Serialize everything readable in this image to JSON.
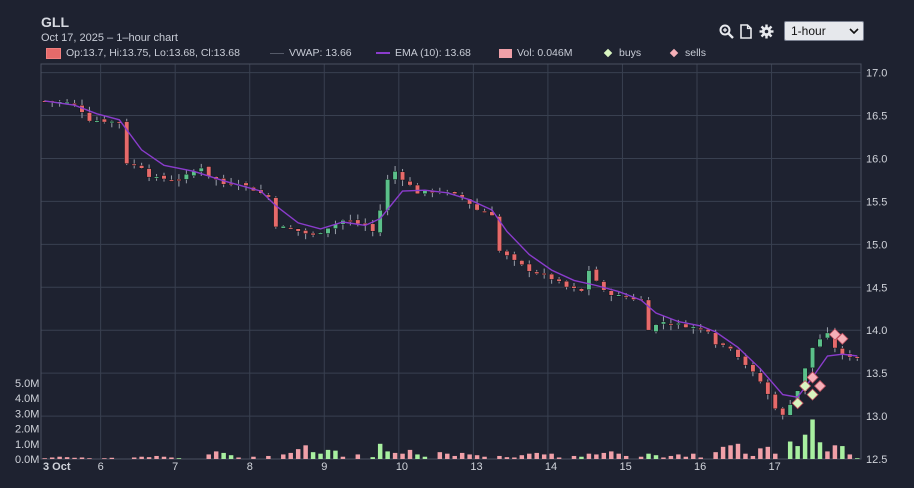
{
  "header": {
    "symbol": "GLL",
    "subtitle": "Oct 17, 2025 – 1–hour chart",
    "interval": "1-hour"
  },
  "toolbar": {
    "icons": [
      "zoom-icon",
      "document-icon",
      "gear-icon"
    ]
  },
  "legend": {
    "ohlc": "Op:13.7, Hi:13.75, Lo:13.68, Cl:13.68",
    "vwap": "VWAP: 13.66",
    "ema": "EMA (10): 13.68",
    "vol": "Vol: 0.046M",
    "buys": "buys",
    "sells": "sells"
  },
  "colors": {
    "background": "#1e2230",
    "grid": "#394050",
    "up": "#5bc08a",
    "down": "#e66a6a",
    "volume_up": "#a8f0a0",
    "volume_down": "#f0a0a8",
    "ema": "#8a3ccc",
    "buy_marker": "#d8f5c0",
    "sell_marker": "#f5b0b8"
  },
  "chart_data": {
    "type": "candlestick",
    "x_tick_labels": [
      "3 Oct",
      "6",
      "7",
      "8",
      "9",
      "10",
      "13",
      "14",
      "15",
      "16",
      "17"
    ],
    "price_axis": {
      "ticks": [
        17.0,
        16.5,
        16.0,
        15.5,
        15.0,
        14.5,
        14.0,
        13.5,
        13.0,
        12.5
      ],
      "range": [
        12.5,
        17.1
      ]
    },
    "volume_axis": {
      "ticks": [
        "5.0M",
        "4.0M",
        "3.0M",
        "2.0M",
        "1.0M",
        "0.0M"
      ],
      "range": [
        0,
        5.0
      ]
    },
    "close_path": [
      [
        0,
        16.67
      ],
      [
        3,
        16.65
      ],
      [
        4,
        16.63
      ],
      [
        5,
        16.55
      ],
      [
        6,
        16.45
      ],
      [
        9,
        16.43
      ],
      [
        10,
        16.42
      ],
      [
        11,
        15.95
      ],
      [
        13,
        15.9
      ],
      [
        14,
        15.8
      ],
      [
        15,
        15.77
      ],
      [
        18,
        15.75
      ],
      [
        21,
        15.9
      ],
      [
        22,
        15.8
      ],
      [
        24,
        15.7
      ],
      [
        26,
        15.72
      ],
      [
        30,
        15.55
      ],
      [
        31,
        15.22
      ],
      [
        33,
        15.18
      ],
      [
        36,
        15.1
      ],
      [
        38,
        15.2
      ],
      [
        40,
        15.28
      ],
      [
        43,
        15.22
      ],
      [
        44,
        15.15
      ],
      [
        45,
        15.4
      ],
      [
        46,
        15.75
      ],
      [
        47,
        15.85
      ],
      [
        50,
        15.6
      ],
      [
        53,
        15.62
      ],
      [
        56,
        15.55
      ],
      [
        58,
        15.4
      ],
      [
        60,
        15.35
      ],
      [
        61,
        14.92
      ],
      [
        63,
        14.8
      ],
      [
        65,
        14.7
      ],
      [
        68,
        14.6
      ],
      [
        70,
        14.5
      ],
      [
        72,
        14.45
      ],
      [
        73,
        14.7
      ],
      [
        75,
        14.45
      ],
      [
        77,
        14.4
      ],
      [
        80,
        14.35
      ],
      [
        81,
        14.02
      ],
      [
        83,
        14.1
      ],
      [
        86,
        14.05
      ],
      [
        89,
        14.0
      ],
      [
        90,
        13.85
      ],
      [
        92,
        13.8
      ],
      [
        94,
        13.6
      ],
      [
        96,
        13.4
      ],
      [
        98,
        13.1
      ],
      [
        99,
        13.0
      ],
      [
        100,
        13.15
      ],
      [
        101,
        13.3
      ],
      [
        102,
        13.55
      ],
      [
        103,
        13.8
      ],
      [
        104,
        13.9
      ],
      [
        105,
        13.95
      ],
      [
        106,
        13.8
      ],
      [
        107,
        13.7
      ],
      [
        108,
        13.7
      ],
      [
        109,
        13.68
      ]
    ],
    "ema_path": [
      [
        0,
        16.67
      ],
      [
        4,
        16.62
      ],
      [
        7,
        16.52
      ],
      [
        10,
        16.45
      ],
      [
        13,
        16.1
      ],
      [
        16,
        15.92
      ],
      [
        20,
        15.85
      ],
      [
        24,
        15.74
      ],
      [
        29,
        15.62
      ],
      [
        31,
        15.45
      ],
      [
        34,
        15.25
      ],
      [
        37,
        15.18
      ],
      [
        40,
        15.26
      ],
      [
        43,
        15.22
      ],
      [
        45,
        15.3
      ],
      [
        48,
        15.62
      ],
      [
        51,
        15.63
      ],
      [
        54,
        15.6
      ],
      [
        57,
        15.52
      ],
      [
        60,
        15.4
      ],
      [
        62,
        15.15
      ],
      [
        65,
        14.88
      ],
      [
        68,
        14.7
      ],
      [
        71,
        14.58
      ],
      [
        74,
        14.52
      ],
      [
        77,
        14.45
      ],
      [
        80,
        14.35
      ],
      [
        82,
        14.2
      ],
      [
        85,
        14.1
      ],
      [
        88,
        14.05
      ],
      [
        90,
        13.98
      ],
      [
        93,
        13.8
      ],
      [
        96,
        13.55
      ],
      [
        99,
        13.25
      ],
      [
        101,
        13.22
      ],
      [
        103,
        13.45
      ],
      [
        105,
        13.7
      ],
      [
        107,
        13.72
      ],
      [
        109,
        13.7
      ]
    ],
    "vwap": 13.66,
    "volume_bars": [
      [
        0,
        0.05
      ],
      [
        1,
        0.1
      ],
      [
        2,
        0.15
      ],
      [
        3,
        0.12
      ],
      [
        4,
        0.08
      ],
      [
        5,
        0.1
      ],
      [
        6,
        0.05
      ],
      [
        8,
        0.05
      ],
      [
        9,
        0.08
      ],
      [
        12,
        0.1
      ],
      [
        13,
        0.15
      ],
      [
        14,
        0.12
      ],
      [
        15,
        0.2
      ],
      [
        16,
        0.15
      ],
      [
        17,
        0.1
      ],
      [
        18,
        0.05
      ],
      [
        22,
        0.3
      ],
      [
        23,
        0.5
      ],
      [
        24,
        0.4
      ],
      [
        25,
        0.25
      ],
      [
        26,
        0.1
      ],
      [
        28,
        0.15
      ],
      [
        30,
        0.2
      ],
      [
        32,
        0.3
      ],
      [
        33,
        0.4
      ],
      [
        34,
        0.65
      ],
      [
        35,
        0.9
      ],
      [
        36,
        0.45
      ],
      [
        37,
        0.35
      ],
      [
        38,
        0.6
      ],
      [
        39,
        0.55
      ],
      [
        40,
        0.15
      ],
      [
        42,
        0.3
      ],
      [
        44,
        0.12
      ],
      [
        45,
        1.0
      ],
      [
        46,
        0.5
      ],
      [
        47,
        0.4
      ],
      [
        48,
        0.35
      ],
      [
        49,
        0.6
      ],
      [
        50,
        0.3
      ],
      [
        51,
        0.15
      ],
      [
        53,
        0.45
      ],
      [
        54,
        0.35
      ],
      [
        55,
        0.2
      ],
      [
        56,
        0.4
      ],
      [
        57,
        0.3
      ],
      [
        58,
        0.25
      ],
      [
        59,
        0.15
      ],
      [
        61,
        0.2
      ],
      [
        62,
        0.12
      ],
      [
        63,
        0.1
      ],
      [
        64,
        0.25
      ],
      [
        65,
        0.35
      ],
      [
        66,
        0.4
      ],
      [
        67,
        0.3
      ],
      [
        68,
        0.35
      ],
      [
        69,
        0.1
      ],
      [
        71,
        0.2
      ],
      [
        72,
        0.15
      ],
      [
        73,
        0.35
      ],
      [
        74,
        0.3
      ],
      [
        75,
        0.4
      ],
      [
        76,
        0.5
      ],
      [
        77,
        0.35
      ],
      [
        78,
        0.2
      ],
      [
        80,
        0.15
      ],
      [
        81,
        0.35
      ],
      [
        82,
        0.25
      ],
      [
        83,
        0.1
      ],
      [
        84,
        0.2
      ],
      [
        85,
        0.3
      ],
      [
        86,
        0.15
      ],
      [
        87,
        0.35
      ],
      [
        88,
        0.1
      ],
      [
        90,
        0.45
      ],
      [
        91,
        0.8
      ],
      [
        92,
        0.9
      ],
      [
        93,
        1.0
      ],
      [
        94,
        0.35
      ],
      [
        95,
        0.2
      ],
      [
        96,
        0.7
      ],
      [
        97,
        0.8
      ],
      [
        98,
        0.35
      ],
      [
        100,
        1.15
      ],
      [
        101,
        0.85
      ],
      [
        102,
        1.6
      ],
      [
        103,
        2.6
      ],
      [
        104,
        1.1
      ],
      [
        105,
        0.5
      ],
      [
        106,
        0.9
      ],
      [
        107,
        0.85
      ],
      [
        108,
        0.3
      ],
      [
        109,
        0.05
      ]
    ],
    "buys": [
      [
        101,
        13.15
      ],
      [
        102,
        13.35
      ],
      [
        103,
        13.25
      ]
    ],
    "sells": [
      [
        103,
        13.45
      ],
      [
        104,
        13.35
      ],
      [
        106,
        13.95
      ],
      [
        107,
        13.9
      ]
    ]
  }
}
